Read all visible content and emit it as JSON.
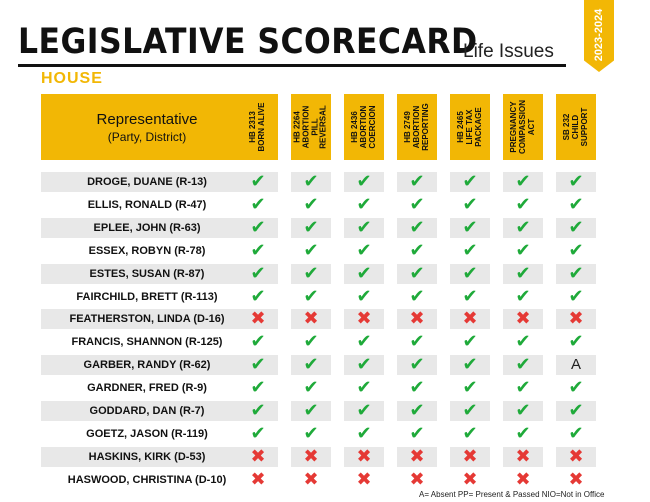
{
  "header": {
    "title": "LEGISLATIVE SCORECARD",
    "subtitle": "Life Issues",
    "year": "2023-2024",
    "chamber": "HOUSE"
  },
  "table": {
    "rep_header": {
      "line1": "Representative",
      "line2": "(Party, District)"
    },
    "bills": [
      "HB 2313\nBORN ALIVE",
      "HB 2264\nABORTION\nPILL REVERSAL",
      "HB 2436\nABORTION\nCOERCION",
      "HB 2749\nABORTION\nREPORTING",
      "HB 2465\nLIFE TAX\nPACKAGE",
      "PREGNANCY\nCOMPASSION\nACT",
      "SB 232\nCHILD\nSUPPORT"
    ],
    "rows": [
      {
        "name": "DROGE, DUANE (R-13)",
        "votes": [
          "Y",
          "Y",
          "Y",
          "Y",
          "Y",
          "Y",
          "Y"
        ]
      },
      {
        "name": "ELLIS, RONALD (R-47)",
        "votes": [
          "Y",
          "Y",
          "Y",
          "Y",
          "Y",
          "Y",
          "Y"
        ]
      },
      {
        "name": "EPLEE, JOHN (R-63)",
        "votes": [
          "Y",
          "Y",
          "Y",
          "Y",
          "Y",
          "Y",
          "Y"
        ]
      },
      {
        "name": "ESSEX, ROBYN (R-78)",
        "votes": [
          "Y",
          "Y",
          "Y",
          "Y",
          "Y",
          "Y",
          "Y"
        ]
      },
      {
        "name": "ESTES, SUSAN (R-87)",
        "votes": [
          "Y",
          "Y",
          "Y",
          "Y",
          "Y",
          "Y",
          "Y"
        ]
      },
      {
        "name": "FAIRCHILD, BRETT (R-113)",
        "votes": [
          "Y",
          "Y",
          "Y",
          "Y",
          "Y",
          "Y",
          "Y"
        ]
      },
      {
        "name": "FEATHERSTON, LINDA (D-16)",
        "votes": [
          "N",
          "N",
          "N",
          "N",
          "N",
          "N",
          "N"
        ]
      },
      {
        "name": "FRANCIS, SHANNON (R-125)",
        "votes": [
          "Y",
          "Y",
          "Y",
          "Y",
          "Y",
          "Y",
          "Y"
        ]
      },
      {
        "name": "GARBER, RANDY (R-62)",
        "votes": [
          "Y",
          "Y",
          "Y",
          "Y",
          "Y",
          "Y",
          "A"
        ]
      },
      {
        "name": "GARDNER, FRED (R-9)",
        "votes": [
          "Y",
          "Y",
          "Y",
          "Y",
          "Y",
          "Y",
          "Y"
        ]
      },
      {
        "name": "GODDARD, DAN (R-7)",
        "votes": [
          "Y",
          "Y",
          "Y",
          "Y",
          "Y",
          "Y",
          "Y"
        ]
      },
      {
        "name": "GOETZ, JASON (R-119)",
        "votes": [
          "Y",
          "Y",
          "Y",
          "Y",
          "Y",
          "Y",
          "Y"
        ]
      },
      {
        "name": "HASKINS, KIRK (D-53)",
        "votes": [
          "N",
          "N",
          "N",
          "N",
          "N",
          "N",
          "N"
        ]
      },
      {
        "name": "HASWOOD, CHRISTINA (D-10)",
        "votes": [
          "N",
          "N",
          "N",
          "N",
          "N",
          "N",
          "N"
        ]
      }
    ],
    "absent_mark": "A"
  },
  "footer": {
    "legend": "A= Absent PP= Present & Passed NIO=Not in Office"
  },
  "colors": {
    "accent": "#f2b705",
    "check": "#1faa3a",
    "cross": "#e53935",
    "row_bg": "#e8e8e8"
  }
}
